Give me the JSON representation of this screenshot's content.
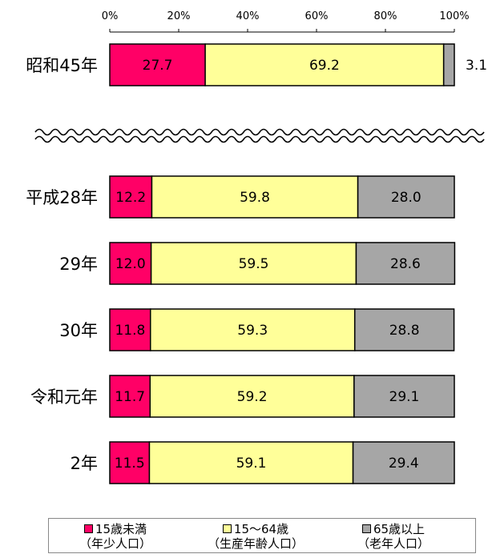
{
  "chart_data": {
    "type": "bar",
    "stacked": true,
    "orientation": "horizontal",
    "percent_axis": true,
    "xlim": [
      0,
      100
    ],
    "x_ticks": [
      "0%",
      "20%",
      "40%",
      "60%",
      "80%",
      "100%"
    ],
    "categories": [
      "昭和45年",
      "平成28年",
      "29年",
      "30年",
      "令和元年",
      "2年"
    ],
    "series": [
      {
        "name": "15歳未満",
        "sub": "（年少人口）",
        "color": "#ff0066",
        "values": [
          27.7,
          12.2,
          12.0,
          11.8,
          11.7,
          11.5
        ],
        "labels": [
          "27.7",
          "12.2",
          "12.0",
          "11.8",
          "11.7",
          "11.5"
        ]
      },
      {
        "name": "15～64歳",
        "sub": "（生産年齢人口）",
        "color": "#ffff99",
        "values": [
          69.2,
          59.8,
          59.5,
          59.3,
          59.2,
          59.1
        ],
        "labels": [
          "69.2",
          "59.8",
          "59.5",
          "59.3",
          "59.2",
          "59.1"
        ]
      },
      {
        "name": "65歳以上",
        "sub": "（老年人口）",
        "color": "#a6a6a6",
        "values": [
          3.1,
          28.0,
          28.6,
          28.8,
          29.1,
          29.4
        ],
        "labels": [
          "3.1",
          "28.0",
          "28.6",
          "28.8",
          "29.1",
          "29.4"
        ]
      }
    ],
    "axis_break": "after 昭和45年",
    "legend_position": "bottom",
    "grid": false
  }
}
